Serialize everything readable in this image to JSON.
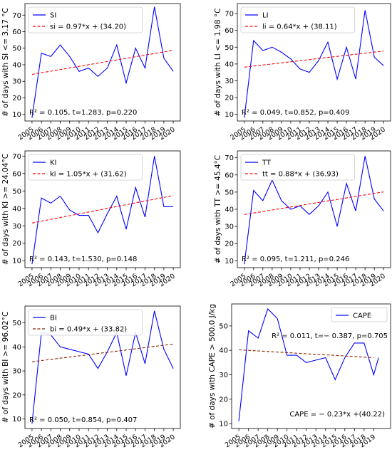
{
  "chart_data": [
    {
      "type": "line",
      "x": [
        2005,
        2006,
        2007,
        2008,
        2009,
        2010,
        2011,
        2012,
        2013,
        2014,
        2015,
        2016,
        2017,
        2018,
        2019,
        2020
      ],
      "series": [
        {
          "name": "SI",
          "values": [
            8,
            47,
            45,
            52,
            45,
            36,
            38,
            33,
            38,
            52,
            29,
            50,
            38,
            75,
            44,
            36
          ]
        },
        {
          "name": "si = 0.97*x + (34.20)",
          "style": "dashed",
          "values": [
            34.2,
            35.17,
            36.14,
            37.11,
            38.08,
            39.05,
            40.02,
            40.99,
            41.96,
            42.93,
            43.9,
            44.87,
            45.84,
            46.81,
            47.78,
            48.75
          ]
        }
      ],
      "ylabel": "# of days with SI <= 3.17 °C",
      "yticks": [
        10,
        20,
        30,
        40,
        50,
        60,
        70
      ],
      "ylim": [
        6,
        77
      ],
      "annotation": "R² = 0.105, t=1.283, p=0.220",
      "legend": "top-left",
      "colors": {
        "line": "#0000ff",
        "fit": "#ff0000"
      }
    },
    {
      "type": "line",
      "x": [
        2005,
        2006,
        2007,
        2008,
        2009,
        2010,
        2011,
        2012,
        2013,
        2014,
        2015,
        2016,
        2017,
        2018,
        2019,
        2020
      ],
      "series": [
        {
          "name": "LI",
          "values": [
            8,
            54,
            48,
            50,
            47,
            43,
            37,
            35,
            42,
            53,
            31,
            50,
            31,
            72,
            44,
            39
          ]
        },
        {
          "name": "li = 0.64*x + (38.11)",
          "style": "dashed",
          "values": [
            38.11,
            38.75,
            39.39,
            40.03,
            40.67,
            41.31,
            41.95,
            42.59,
            43.23,
            43.87,
            44.51,
            45.15,
            45.79,
            46.43,
            47.07,
            47.71
          ]
        }
      ],
      "ylabel": "# of days with LI <= 1.98 °C",
      "yticks": [
        10,
        20,
        30,
        40,
        50,
        60,
        70
      ],
      "ylim": [
        6,
        76
      ],
      "annotation": "R² = 0.049, t=0.852, p=0.409",
      "legend": "top-left",
      "colors": {
        "line": "#0000ff",
        "fit": "#ff0000"
      }
    },
    {
      "type": "line",
      "x": [
        2005,
        2006,
        2007,
        2008,
        2009,
        2010,
        2011,
        2012,
        2013,
        2014,
        2015,
        2016,
        2017,
        2018,
        2019,
        2020
      ],
      "series": [
        {
          "name": "KI",
          "values": [
            8,
            46,
            43,
            47,
            39,
            36,
            36,
            26,
            37,
            47,
            28,
            52,
            35,
            70,
            41,
            41
          ]
        },
        {
          "name": "ki = 1.05*x + (31.62)",
          "style": "dashed",
          "values": [
            31.62,
            32.67,
            33.72,
            34.77,
            35.82,
            36.87,
            37.92,
            38.97,
            40.02,
            41.07,
            42.12,
            43.17,
            44.22,
            45.27,
            46.32,
            47.37
          ]
        }
      ],
      "ylabel": "# of days with KI >= 24.04°C",
      "yticks": [
        10,
        20,
        30,
        40,
        50,
        60,
        70
      ],
      "ylim": [
        6,
        73
      ],
      "annotation": "R² = 0.143, t=1.530, p=0.148",
      "legend": "top-left",
      "colors": {
        "line": "#0000ff",
        "fit": "#ff0000"
      }
    },
    {
      "type": "line",
      "x": [
        2005,
        2006,
        2007,
        2008,
        2009,
        2010,
        2011,
        2012,
        2013,
        2014,
        2015,
        2016,
        2017,
        2018,
        2019,
        2020
      ],
      "series": [
        {
          "name": "TT",
          "values": [
            8,
            51,
            45,
            57,
            45,
            40,
            42,
            37,
            42,
            50,
            30,
            55,
            39,
            71,
            46,
            39
          ]
        },
        {
          "name": "tt = 0.88*x + (36.93)",
          "style": "dashed",
          "values": [
            36.93,
            37.81,
            38.69,
            39.57,
            40.45,
            41.33,
            42.21,
            43.09,
            43.97,
            44.85,
            45.73,
            46.61,
            47.49,
            48.37,
            49.25,
            50.13
          ]
        }
      ],
      "ylabel": "# of days with TT >= 45.4°C",
      "yticks": [
        10,
        20,
        30,
        40,
        50,
        60,
        70
      ],
      "ylim": [
        6,
        74
      ],
      "annotation": "R² = 0.095, t=1.211, p=0.246",
      "legend": "top-left",
      "colors": {
        "line": "#0000ff",
        "fit": "#ff0000"
      }
    },
    {
      "type": "line",
      "x": [
        2005,
        2006,
        2007,
        2008,
        2009,
        2010,
        2011,
        2012,
        2013,
        2014,
        2015,
        2016,
        2017,
        2018,
        2019,
        2020
      ],
      "series": [
        {
          "name": "BI",
          "values": [
            8,
            46,
            45,
            40,
            39,
            38,
            37,
            31,
            38,
            46,
            28,
            46,
            33,
            55,
            39,
            31
          ]
        },
        {
          "name": "bi = 0.49*x + (33.82)",
          "style": "dashed",
          "values": [
            33.82,
            34.31,
            34.8,
            35.29,
            35.78,
            36.27,
            36.76,
            37.25,
            37.74,
            38.23,
            38.72,
            39.21,
            39.7,
            40.19,
            40.68,
            41.17
          ]
        }
      ],
      "ylabel": "# of days with BI >= 96.02°C",
      "yticks": [
        10,
        20,
        30,
        40,
        50
      ],
      "ylim": [
        6,
        57
      ],
      "annotation": "R² = 0.050, t=0.854, p=0.407",
      "legend": "top-left",
      "colors": {
        "line": "#0000ff",
        "fit": "#8b2500"
      }
    },
    {
      "type": "line",
      "x": [
        2005,
        2006,
        2007,
        2008,
        2009,
        2010,
        2011,
        2012,
        2013,
        2014,
        2015,
        2016,
        2017,
        2018,
        2019
      ],
      "series": [
        {
          "name": "CAPE",
          "values": [
            11,
            48,
            45,
            57,
            53,
            38,
            38,
            35,
            36,
            37,
            28,
            37,
            43,
            43,
            30
          ]
        },
        {
          "name": "CAPE = − 0.23*x +(40.22)",
          "style": "dashed",
          "values": [
            40.22,
            39.99,
            39.76,
            39.53,
            39.3,
            39.07,
            38.84,
            38.61,
            38.38,
            38.15,
            37.92,
            37.69,
            37.46,
            37.23,
            37.0
          ]
        }
      ],
      "extra_point": {
        "x": 2019.5,
        "y": 37
      },
      "ylabel": "# of days with CAPE > 500.0 J/kg",
      "yticks": [
        10,
        20,
        30,
        40,
        50
      ],
      "ylim": [
        8,
        59
      ],
      "annotation": "R² = 0.011, t=− 0.387, p=0.705",
      "equation_label": "CAPE = − 0.23*x +(40.22)",
      "legend": "top-right",
      "colors": {
        "line": "#0000ff",
        "fit": "#8b2500"
      }
    }
  ]
}
